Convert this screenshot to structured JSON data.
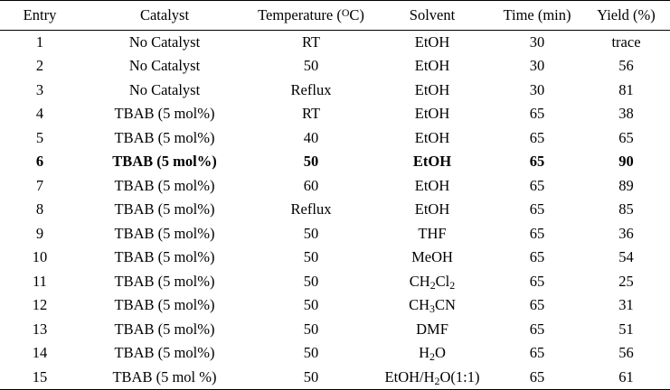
{
  "table": {
    "headers": {
      "entry": "Entry",
      "catalyst": "Catalyst",
      "temperature_prefix": "Temperature (",
      "temperature_sup": "O",
      "temperature_suffix": "C)",
      "solvent": "Solvent",
      "time": "Time (min)",
      "yield": "Yield (%)"
    },
    "rows": [
      {
        "entry": "1",
        "catalyst": "No Catalyst",
        "temperature": "RT",
        "solvent": [
          "EtOH"
        ],
        "time": "30",
        "yield": "trace",
        "bold": false
      },
      {
        "entry": "2",
        "catalyst": "No Catalyst",
        "temperature": "50",
        "solvent": [
          "EtOH"
        ],
        "time": "30",
        "yield": "56",
        "bold": false
      },
      {
        "entry": "3",
        "catalyst": "No Catalyst",
        "temperature": "Reflux",
        "solvent": [
          "EtOH"
        ],
        "time": "30",
        "yield": "81",
        "bold": false
      },
      {
        "entry": "4",
        "catalyst": "TBAB (5 mol%)",
        "temperature": "RT",
        "solvent": [
          "EtOH"
        ],
        "time": "65",
        "yield": "38",
        "bold": false
      },
      {
        "entry": "5",
        "catalyst": "TBAB (5 mol%)",
        "temperature": "40",
        "solvent": [
          "EtOH"
        ],
        "time": "65",
        "yield": "65",
        "bold": false
      },
      {
        "entry": "6",
        "catalyst": "TBAB (5 mol%)",
        "temperature": "50",
        "solvent": [
          "EtOH"
        ],
        "time": "65",
        "yield": "90",
        "bold": true
      },
      {
        "entry": "7",
        "catalyst": "TBAB (5 mol%)",
        "temperature": "60",
        "solvent": [
          "EtOH"
        ],
        "time": "65",
        "yield": "89",
        "bold": false
      },
      {
        "entry": "8",
        "catalyst": "TBAB (5 mol%)",
        "temperature": "Reflux",
        "solvent": [
          "EtOH"
        ],
        "time": "65",
        "yield": "85",
        "bold": false
      },
      {
        "entry": "9",
        "catalyst": "TBAB (5 mol%)",
        "temperature": "50",
        "solvent": [
          "THF"
        ],
        "time": "65",
        "yield": "36",
        "bold": false
      },
      {
        "entry": "10",
        "catalyst": "TBAB (5 mol%)",
        "temperature": "50",
        "solvent": [
          "MeOH"
        ],
        "time": "65",
        "yield": "54",
        "bold": false
      },
      {
        "entry": "11",
        "catalyst": "TBAB (5 mol%)",
        "temperature": "50",
        "solvent": [
          "CH",
          "2",
          "Cl",
          "2"
        ],
        "time": "65",
        "yield": "25",
        "bold": false
      },
      {
        "entry": "12",
        "catalyst": "TBAB (5 mol%)",
        "temperature": "50",
        "solvent": [
          "CH",
          "3",
          "CN"
        ],
        "time": "65",
        "yield": "31",
        "bold": false
      },
      {
        "entry": "13",
        "catalyst": "TBAB (5 mol%)",
        "temperature": "50",
        "solvent": [
          "DMF"
        ],
        "time": "65",
        "yield": "51",
        "bold": false
      },
      {
        "entry": "14",
        "catalyst": "TBAB (5 mol%)",
        "temperature": "50",
        "solvent": [
          "H",
          "2",
          "O"
        ],
        "time": "65",
        "yield": "56",
        "bold": false
      },
      {
        "entry": "15",
        "catalyst": "TBAB (5 mol %)",
        "temperature": "50",
        "solvent": [
          "EtOH/H",
          "2",
          "O(1:1)"
        ],
        "time": "65",
        "yield": "61",
        "bold": false
      }
    ]
  }
}
